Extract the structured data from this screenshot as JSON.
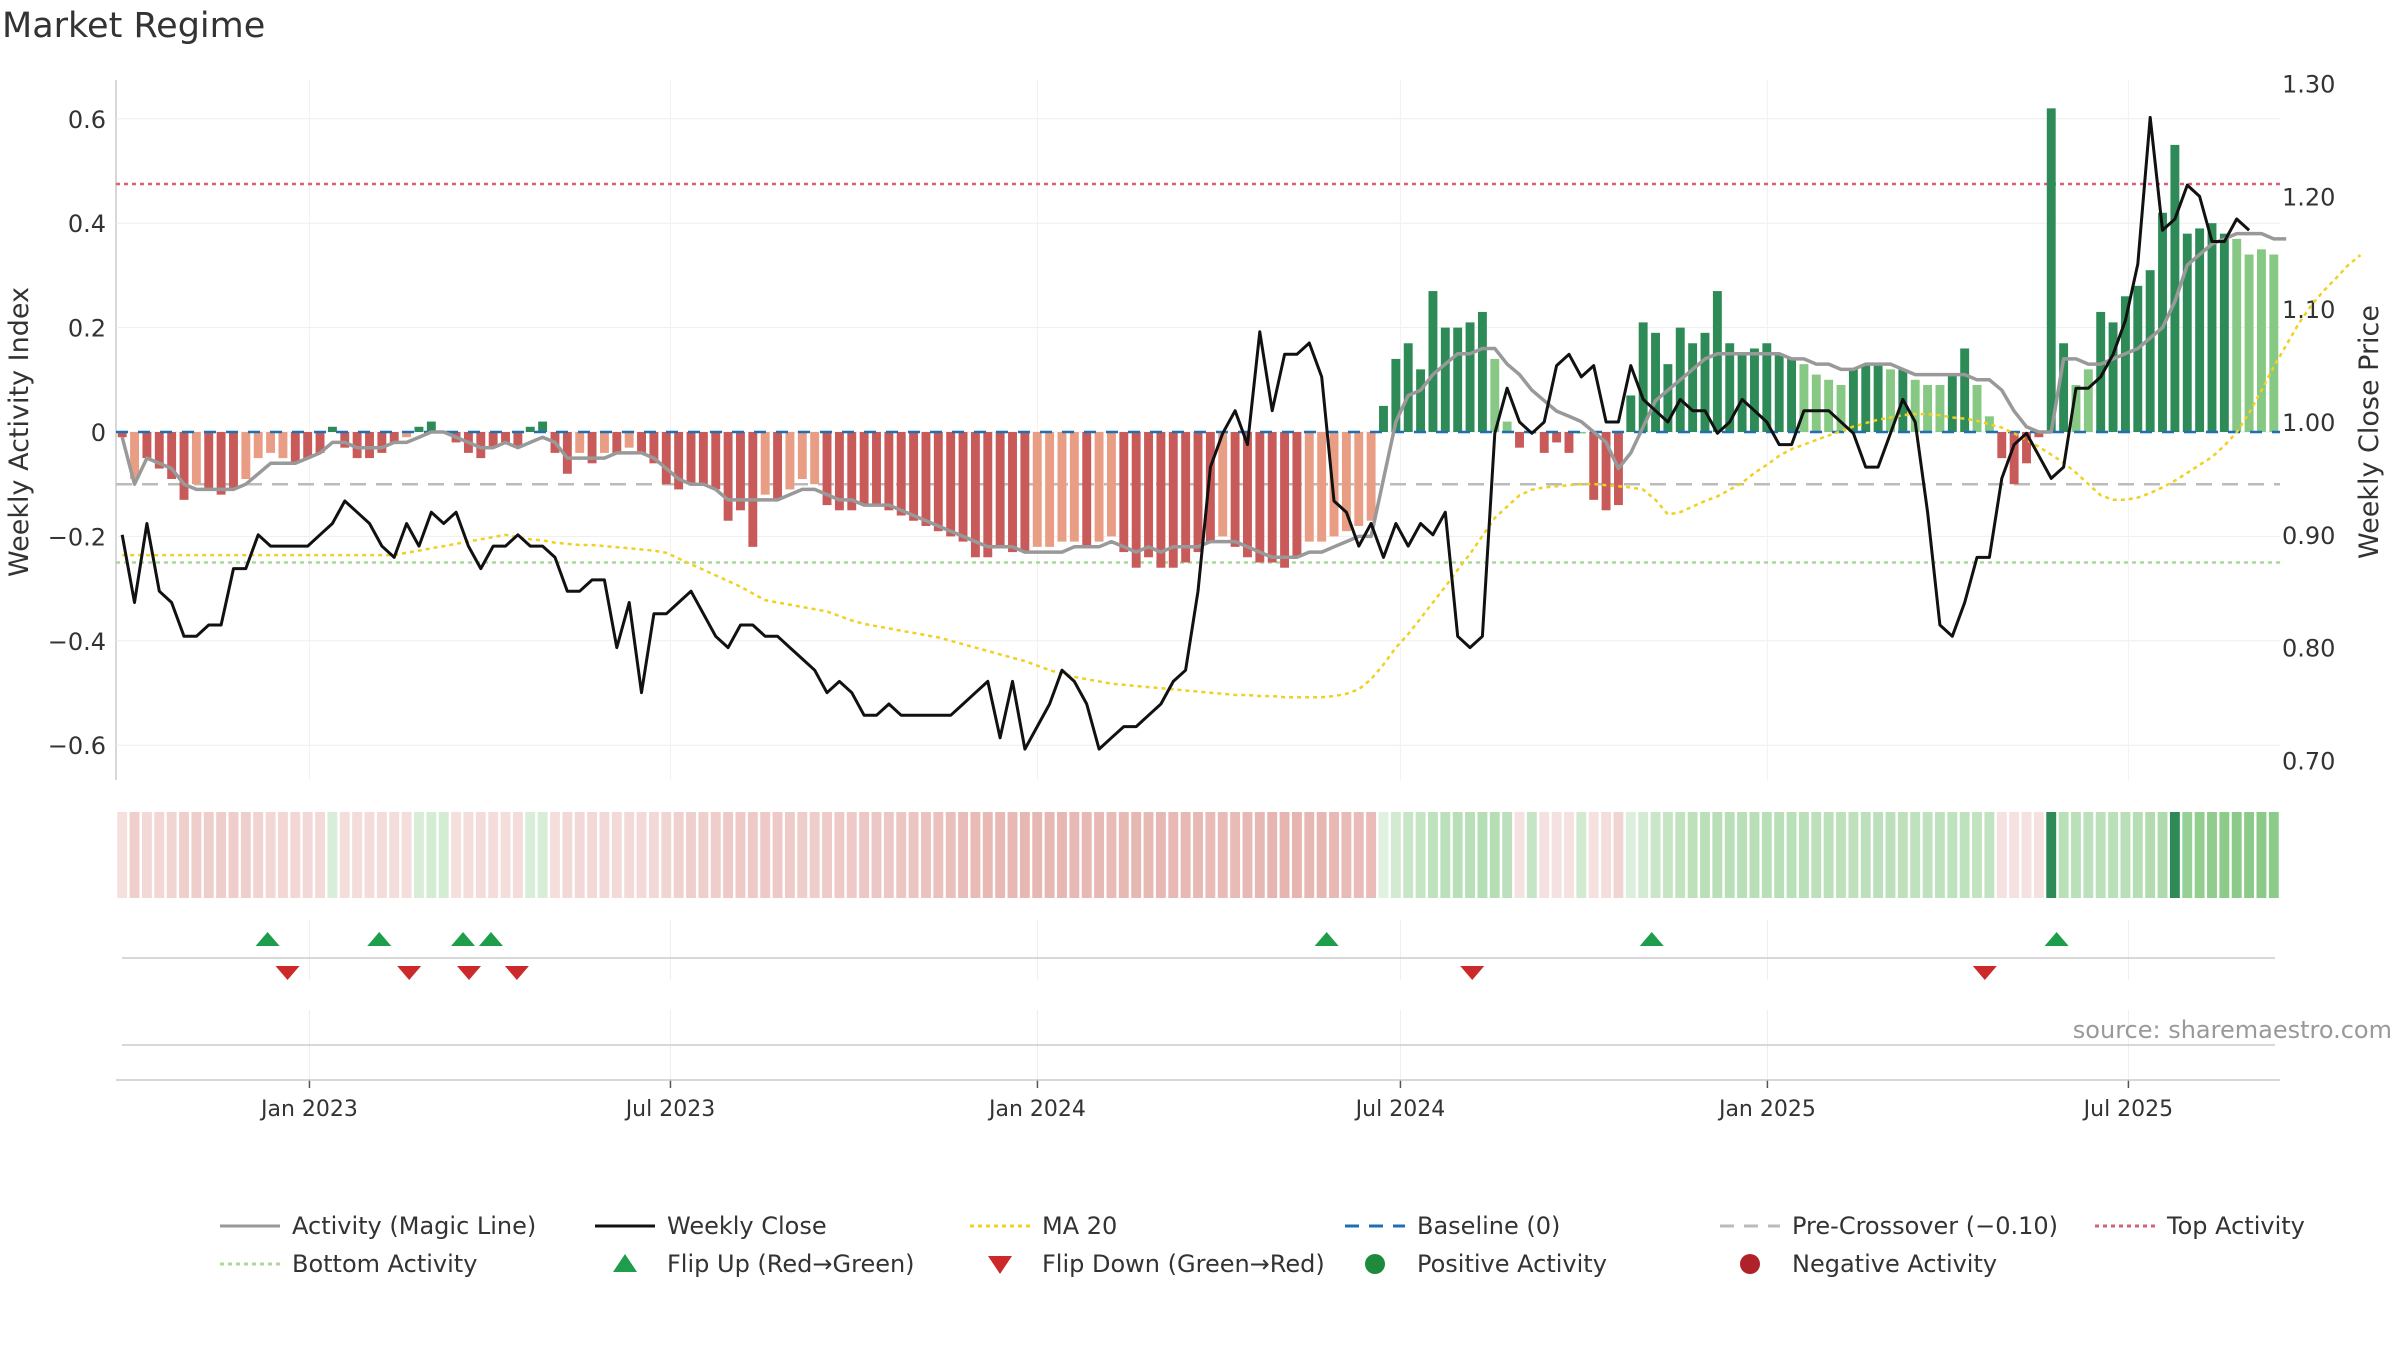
{
  "title": "Market Regime",
  "source": "source: sharemaestro.com",
  "chart_data": {
    "type": "bar",
    "ylabel": "Weekly Activity Index",
    "y2label": "Weekly Close Price",
    "ylim": [
      -0.67,
      0.67
    ],
    "y2lim": [
      0.67,
      1.3
    ],
    "yticks": [
      "0.6",
      "0.4",
      "0.2",
      "0",
      "−0.2",
      "−0.4",
      "−0.6"
    ],
    "y2ticks": [
      "1.30",
      "1.20",
      "1.10",
      "1.00",
      "0.90",
      "0.80",
      "0.70"
    ],
    "xticks": [
      "Jan 2023",
      "Jul 2023",
      "Jan 2024",
      "Jul 2024",
      "Jan 2025",
      "Jul 2025"
    ],
    "x_start": "2022-09-26",
    "x_end": "2025-09-15",
    "top_activity": 0.475,
    "bottom_activity": -0.25,
    "pre_crossover": -0.1,
    "baseline": 0,
    "colors": {
      "neg_dark": "#c95a5a",
      "neg_light": "#e99d84",
      "pos_dark": "#2e8b57",
      "pos_light": "#86c884",
      "close": "#111111",
      "magic": "#999999",
      "ma20": "#f0d020",
      "baseline": "#1f6fb4",
      "pre": "#bbbbbb",
      "top": "#d9607a",
      "bottom": "#a8d89a",
      "flip_up": "#1e9e4a",
      "flip_down": "#cc2a2a"
    },
    "weekly_activity": [
      -0.01,
      -0.09,
      -0.05,
      -0.07,
      -0.09,
      -0.13,
      -0.1,
      -0.11,
      -0.12,
      -0.11,
      -0.09,
      -0.05,
      -0.04,
      -0.05,
      -0.06,
      -0.05,
      -0.04,
      0.01,
      -0.03,
      -0.05,
      -0.05,
      -0.04,
      -0.02,
      -0.01,
      0.01,
      0.02,
      0.0,
      -0.02,
      -0.04,
      -0.05,
      -0.03,
      -0.02,
      -0.03,
      0.01,
      0.02,
      -0.04,
      -0.08,
      -0.04,
      -0.06,
      -0.04,
      -0.04,
      -0.03,
      -0.04,
      -0.06,
      -0.1,
      -0.11,
      -0.1,
      -0.1,
      -0.11,
      -0.17,
      -0.15,
      -0.22,
      -0.12,
      -0.13,
      -0.11,
      -0.09,
      -0.1,
      -0.14,
      -0.15,
      -0.15,
      -0.14,
      -0.14,
      -0.15,
      -0.16,
      -0.17,
      -0.18,
      -0.19,
      -0.2,
      -0.21,
      -0.24,
      -0.24,
      -0.22,
      -0.23,
      -0.23,
      -0.22,
      -0.22,
      -0.21,
      -0.21,
      -0.22,
      -0.21,
      -0.2,
      -0.23,
      -0.26,
      -0.24,
      -0.26,
      -0.26,
      -0.25,
      -0.23,
      -0.21,
      -0.2,
      -0.22,
      -0.24,
      -0.25,
      -0.25,
      -0.26,
      -0.24,
      -0.21,
      -0.21,
      -0.2,
      -0.19,
      -0.18,
      -0.17,
      0.05,
      0.14,
      0.17,
      0.12,
      0.27,
      0.2,
      0.2,
      0.21,
      0.23,
      0.14,
      0.02,
      -0.03,
      0.0,
      -0.04,
      -0.02,
      -0.04,
      0.0,
      -0.13,
      -0.15,
      -0.14,
      0.07,
      0.21,
      0.19,
      0.13,
      0.2,
      0.17,
      0.19,
      0.27,
      0.17,
      0.15,
      0.16,
      0.17,
      0.15,
      0.14,
      0.13,
      0.11,
      0.1,
      0.09,
      0.12,
      0.13,
      0.13,
      0.12,
      0.12,
      0.1,
      0.09,
      0.09,
      0.11,
      0.16,
      0.09,
      0.03,
      -0.05,
      -0.1,
      -0.06,
      -0.01,
      0.62,
      0.17,
      0.09,
      0.12,
      0.23,
      0.21,
      0.26,
      0.28,
      0.31,
      0.42,
      0.55,
      0.38,
      0.39,
      0.4,
      0.38,
      0.37,
      0.34,
      0.35,
      0.34
    ],
    "magic_line": [
      -0.01,
      -0.1,
      -0.05,
      -0.06,
      -0.07,
      -0.1,
      -0.11,
      -0.11,
      -0.11,
      -0.11,
      -0.1,
      -0.08,
      -0.06,
      -0.06,
      -0.06,
      -0.05,
      -0.04,
      -0.02,
      -0.02,
      -0.03,
      -0.03,
      -0.03,
      -0.02,
      -0.02,
      -0.01,
      0.0,
      0.0,
      -0.01,
      -0.02,
      -0.03,
      -0.03,
      -0.02,
      -0.03,
      -0.02,
      -0.01,
      -0.02,
      -0.05,
      -0.05,
      -0.05,
      -0.05,
      -0.04,
      -0.04,
      -0.04,
      -0.05,
      -0.07,
      -0.09,
      -0.1,
      -0.1,
      -0.11,
      -0.13,
      -0.13,
      -0.13,
      -0.13,
      -0.13,
      -0.12,
      -0.11,
      -0.11,
      -0.12,
      -0.13,
      -0.13,
      -0.14,
      -0.14,
      -0.14,
      -0.15,
      -0.16,
      -0.17,
      -0.18,
      -0.19,
      -0.2,
      -0.21,
      -0.22,
      -0.22,
      -0.22,
      -0.23,
      -0.23,
      -0.23,
      -0.23,
      -0.22,
      -0.22,
      -0.22,
      -0.21,
      -0.22,
      -0.23,
      -0.22,
      -0.23,
      -0.22,
      -0.22,
      -0.22,
      -0.21,
      -0.21,
      -0.21,
      -0.22,
      -0.23,
      -0.24,
      -0.24,
      -0.24,
      -0.23,
      -0.23,
      -0.22,
      -0.21,
      -0.2,
      -0.2,
      -0.09,
      0.02,
      0.07,
      0.08,
      0.11,
      0.13,
      0.15,
      0.15,
      0.16,
      0.16,
      0.13,
      0.11,
      0.08,
      0.06,
      0.04,
      0.03,
      0.02,
      0.0,
      -0.02,
      -0.07,
      -0.04,
      0.01,
      0.06,
      0.08,
      0.1,
      0.12,
      0.14,
      0.15,
      0.15,
      0.15,
      0.15,
      0.15,
      0.15,
      0.14,
      0.14,
      0.13,
      0.13,
      0.12,
      0.12,
      0.13,
      0.13,
      0.13,
      0.12,
      0.11,
      0.11,
      0.11,
      0.11,
      0.11,
      0.1,
      0.1,
      0.08,
      0.04,
      0.01,
      0.0,
      0.0,
      0.14,
      0.14,
      0.13,
      0.13,
      0.14,
      0.15,
      0.16,
      0.18,
      0.2,
      0.25,
      0.32,
      0.34,
      0.36,
      0.37,
      0.38,
      0.38,
      0.38,
      0.37,
      0.37
    ],
    "ma20": [
      0.882,
      0.882,
      0.882,
      0.882,
      0.882,
      0.882,
      0.882,
      0.882,
      0.882,
      0.882,
      0.882,
      0.882,
      0.882,
      0.882,
      0.882,
      0.882,
      0.882,
      0.882,
      0.882,
      0.882,
      0.882,
      0.882,
      0.882,
      0.884,
      0.886,
      0.888,
      0.89,
      0.892,
      0.894,
      0.896,
      0.898,
      0.9,
      0.898,
      0.896,
      0.895,
      0.893,
      0.892,
      0.891,
      0.891,
      0.89,
      0.889,
      0.888,
      0.887,
      0.886,
      0.884,
      0.879,
      0.874,
      0.869,
      0.864,
      0.859,
      0.854,
      0.848,
      0.842,
      0.84,
      0.838,
      0.836,
      0.834,
      0.832,
      0.828,
      0.824,
      0.821,
      0.819,
      0.817,
      0.815,
      0.813,
      0.811,
      0.809,
      0.806,
      0.803,
      0.8,
      0.797,
      0.794,
      0.791,
      0.788,
      0.784,
      0.78,
      0.777,
      0.774,
      0.772,
      0.77,
      0.768,
      0.767,
      0.766,
      0.765,
      0.764,
      0.763,
      0.762,
      0.761,
      0.76,
      0.759,
      0.758,
      0.758,
      0.757,
      0.757,
      0.756,
      0.756,
      0.756,
      0.756,
      0.757,
      0.759,
      0.763,
      0.772,
      0.785,
      0.8,
      0.812,
      0.826,
      0.84,
      0.854,
      0.869,
      0.883,
      0.899,
      0.915,
      0.925,
      0.935,
      0.94,
      0.942,
      0.943,
      0.944,
      0.945,
      0.945,
      0.944,
      0.943,
      0.942,
      0.94,
      0.931,
      0.918,
      0.92,
      0.925,
      0.93,
      0.934,
      0.94,
      0.946,
      0.955,
      0.962,
      0.97,
      0.976,
      0.98,
      0.984,
      0.988,
      0.992,
      0.996,
      0.999,
      1.002,
      1.004,
      1.006,
      1.007,
      1.007,
      1.006,
      1.004,
      1.003,
      1.001,
      0.998,
      0.995,
      0.99,
      0.984,
      0.978,
      0.971,
      0.964,
      0.955,
      0.945,
      0.935,
      0.931,
      0.931,
      0.933,
      0.937,
      0.942,
      0.948,
      0.955,
      0.962,
      0.969,
      0.979,
      0.991,
      1.008,
      1.028,
      1.049,
      1.068,
      1.087,
      1.103,
      1.116,
      1.127,
      1.139,
      1.148
    ],
    "weekly_close": [
      0.9,
      0.84,
      0.91,
      0.85,
      0.84,
      0.81,
      0.81,
      0.82,
      0.82,
      0.87,
      0.87,
      0.9,
      0.89,
      0.89,
      0.89,
      0.89,
      0.9,
      0.91,
      0.93,
      0.92,
      0.91,
      0.89,
      0.88,
      0.91,
      0.89,
      0.92,
      0.91,
      0.92,
      0.89,
      0.87,
      0.89,
      0.89,
      0.9,
      0.89,
      0.89,
      0.88,
      0.85,
      0.85,
      0.86,
      0.86,
      0.8,
      0.84,
      0.76,
      0.83,
      0.83,
      0.84,
      0.85,
      0.83,
      0.81,
      0.8,
      0.82,
      0.82,
      0.81,
      0.81,
      0.8,
      0.79,
      0.78,
      0.76,
      0.77,
      0.76,
      0.74,
      0.74,
      0.75,
      0.74,
      0.74,
      0.74,
      0.74,
      0.74,
      0.75,
      0.76,
      0.77,
      0.72,
      0.77,
      0.71,
      0.73,
      0.75,
      0.78,
      0.77,
      0.75,
      0.71,
      0.72,
      0.73,
      0.73,
      0.74,
      0.75,
      0.77,
      0.78,
      0.85,
      0.96,
      0.99,
      1.01,
      0.98,
      1.08,
      1.01,
      1.06,
      1.06,
      1.07,
      1.04,
      0.93,
      0.92,
      0.89,
      0.91,
      0.88,
      0.91,
      0.89,
      0.91,
      0.9,
      0.92,
      0.81,
      0.8,
      0.81,
      0.99,
      1.03,
      1.0,
      0.99,
      1.0,
      1.05,
      1.06,
      1.04,
      1.05,
      1.0,
      1.0,
      1.05,
      1.02,
      1.01,
      1.0,
      1.02,
      1.01,
      1.01,
      0.99,
      1.0,
      1.02,
      1.01,
      1.0,
      0.98,
      0.98,
      1.01,
      1.01,
      1.01,
      1.0,
      0.99,
      0.96,
      0.96,
      0.99,
      1.02,
      1.0,
      0.92,
      0.82,
      0.81,
      0.84,
      0.88,
      0.88,
      0.95,
      0.98,
      0.99,
      0.97,
      0.95,
      0.96,
      1.03,
      1.03,
      1.04,
      1.06,
      1.09,
      1.14,
      1.27,
      1.17,
      1.18,
      1.21,
      1.2,
      1.16,
      1.16,
      1.18,
      1.17
    ],
    "flip_up": [
      "2022-12-11",
      "2023-02-05",
      "2023-03-19",
      "2023-04-02",
      "2024-05-25",
      "2024-11-04",
      "2025-05-26"
    ],
    "flip_down": [
      "2022-12-21",
      "2023-02-20",
      "2023-03-22",
      "2023-04-15",
      "2024-08-06",
      "2025-04-20"
    ],
    "legend": [
      {
        "label": "Activity (Magic Line)",
        "style": "line",
        "color": "#999999"
      },
      {
        "label": "Weekly Close",
        "style": "line",
        "color": "#111111"
      },
      {
        "label": "MA 20",
        "style": "dotted",
        "color": "#f0d020"
      },
      {
        "label": "Baseline (0)",
        "style": "dashed",
        "color": "#1f6fb4"
      },
      {
        "label": "Pre-Crossover (−0.10)",
        "style": "dashed",
        "color": "#bbbbbb"
      },
      {
        "label": "Top Activity",
        "style": "dotted",
        "color": "#d9607a"
      },
      {
        "label": "Bottom Activity",
        "style": "dotted",
        "color": "#a8d89a"
      },
      {
        "label": "Flip Up (Red→Green)",
        "style": "tri-up",
        "color": "#1e9e4a"
      },
      {
        "label": "Flip Down (Green→Red)",
        "style": "tri-down",
        "color": "#cc2a2a"
      },
      {
        "label": "Positive Activity",
        "style": "dot",
        "color": "#1e8a3c"
      },
      {
        "label": "Negative Activity",
        "style": "dot",
        "color": "#b0222a"
      }
    ]
  }
}
